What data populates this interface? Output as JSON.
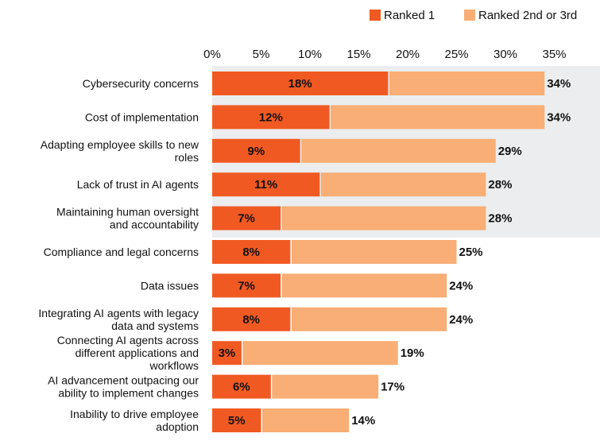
{
  "chart_data": {
    "type": "bar",
    "orientation": "horizontal",
    "stacked": true,
    "title": "",
    "xlabel": "",
    "ylabel": "",
    "xlim": [
      0,
      35
    ],
    "x_ticks": [
      "0%",
      "5%",
      "10%",
      "15%",
      "20%",
      "25%",
      "30%",
      "35%"
    ],
    "x_tick_values": [
      0,
      5,
      10,
      15,
      20,
      25,
      30,
      35
    ],
    "highlighted_top_categories": 5,
    "legend": {
      "placement": "top-right",
      "entries": [
        {
          "name": "Ranked 1",
          "color": "#F05A22"
        },
        {
          "name": "Ranked 2nd or 3rd",
          "color": "#F8AE75"
        }
      ]
    },
    "categories": [
      [
        "Cybersecurity concerns"
      ],
      [
        "Cost of implementation"
      ],
      [
        "Adapting employee skills to new",
        "roles"
      ],
      [
        "Lack of trust in AI agents"
      ],
      [
        "Maintaining human oversight",
        "and accountability"
      ],
      [
        "Compliance and legal concerns"
      ],
      [
        "Data issues"
      ],
      [
        "Integrating AI agents with legacy",
        "data and systems"
      ],
      [
        "Connecting AI agents across",
        "different applications and",
        "workflows"
      ],
      [
        "AI advancement outpacing our",
        "ability to implement changes"
      ],
      [
        "Inability to drive employee",
        "adoption"
      ]
    ],
    "series": [
      {
        "name": "Ranked 1",
        "values": [
          18,
          12,
          9,
          11,
          7,
          8,
          7,
          8,
          3,
          6,
          5
        ],
        "labels": [
          "18%",
          "12%",
          "9%",
          "11%",
          "7%",
          "8%",
          "7%",
          "8%",
          "3%",
          "6%",
          "5%"
        ]
      },
      {
        "name": "Ranked 2nd or 3rd",
        "values": [
          16,
          22,
          20,
          17,
          21,
          17,
          17,
          16,
          16,
          11,
          9
        ]
      }
    ],
    "totals": [
      34,
      34,
      29,
      28,
      28,
      25,
      24,
      24,
      19,
      17,
      14
    ],
    "total_labels": [
      "34%",
      "34%",
      "29%",
      "28%",
      "28%",
      "25%",
      "24%",
      "24%",
      "19%",
      "17%",
      "14%"
    ],
    "colors": {
      "ranked1": "#F05A22",
      "ranked23": "#F8AE75",
      "highlight_bg": "#EBEDEE"
    }
  }
}
